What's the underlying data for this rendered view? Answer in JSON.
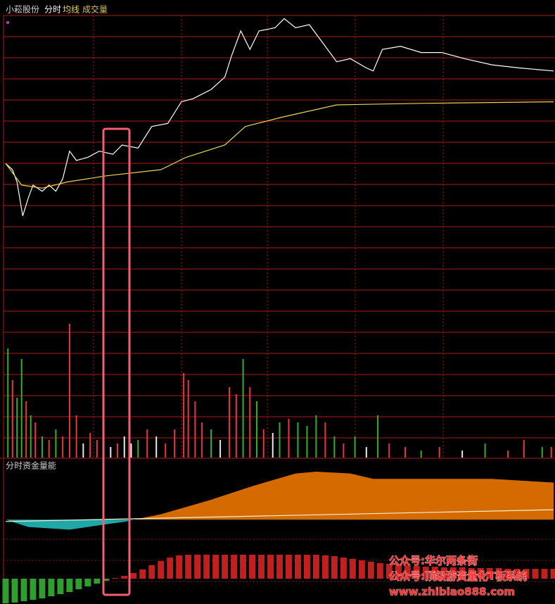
{
  "chart_data": [
    {
      "type": "line",
      "title": "小菘股份",
      "xlim": [
        0,
        240
      ],
      "ylim": [
        0,
        100
      ],
      "x": [
        0,
        3,
        5,
        7.5,
        10,
        12,
        16,
        19,
        22,
        25,
        28,
        31,
        36,
        41,
        47,
        51,
        58,
        64,
        71,
        77,
        82,
        90,
        96,
        99,
        103,
        107,
        111,
        118,
        122,
        127,
        133,
        139,
        145,
        151,
        158,
        161,
        165,
        173,
        182,
        191,
        201,
        213,
        225,
        240
      ],
      "series": [
        {
          "name": "分时",
          "color": "#ffffff",
          "values": [
            52,
            50,
            46,
            35,
            41,
            45,
            43,
            45,
            43,
            47,
            56,
            53,
            54,
            56,
            55,
            58,
            57,
            64,
            65,
            72,
            73,
            76,
            80,
            87,
            95,
            89,
            95,
            96,
            99,
            96,
            97,
            91,
            85,
            86,
            83,
            82,
            89,
            90,
            88,
            88,
            86,
            84,
            83,
            82
          ]
        }
      ]
    },
    {
      "type": "line",
      "xlim": [
        0,
        240
      ],
      "ylim": [
        0,
        100
      ],
      "x": [
        0,
        7,
        16,
        27,
        44,
        68,
        79,
        96,
        105,
        121,
        145,
        182,
        240
      ],
      "series": [
        {
          "name": "均线",
          "color": "#e6d84a",
          "values": [
            52,
            45,
            44,
            46,
            48,
            50,
            54,
            58,
            64,
            67,
            71,
            71.5,
            72
          ]
        }
      ]
    },
    {
      "type": "bar",
      "xlim": [
        0,
        240
      ],
      "ylim": [
        0,
        200
      ],
      "x": [
        1,
        3,
        5,
        7,
        9,
        11,
        13,
        16,
        19,
        22,
        25,
        28,
        31,
        34,
        37,
        40,
        43,
        46,
        49,
        52,
        55,
        58,
        62,
        66,
        70,
        74,
        78,
        80,
        83,
        86,
        90,
        94,
        98,
        101,
        104,
        107,
        110,
        113,
        117,
        120,
        124,
        128,
        132,
        136,
        140,
        144,
        148,
        153,
        158,
        163,
        168,
        175,
        182,
        190,
        200,
        210,
        220,
        227,
        235,
        239
      ],
      "series": [
        {
          "name": "成交量",
          "color": "#d8c060",
          "values": [
            155,
            110,
            85,
            140,
            80,
            60,
            50,
            30,
            25,
            40,
            30,
            190,
            60,
            20,
            35,
            25,
            100,
            15,
            20,
            30,
            20,
            25,
            40,
            30,
            20,
            40,
            120,
            110,
            80,
            50,
            40,
            25,
            100,
            90,
            140,
            100,
            80,
            40,
            35,
            50,
            55,
            50,
            45,
            60,
            50,
            30,
            20,
            30,
            15,
            60,
            20,
            15,
            10,
            15,
            10,
            20,
            10,
            25,
            15,
            15
          ],
          "colors": [
            "#2fb02f",
            "#e8383d",
            "#2fb02f",
            "#2fb02f",
            "#e8383d",
            "#2fb02f",
            "#e8383d",
            "#2fb02f",
            "#e8383d",
            "#2fb02f",
            "#e8383d",
            "#e8383d",
            "#e8383d",
            "#e8e8e8",
            "#e8383d",
            "#e8383d",
            "#e8383d",
            "#e8e8e8",
            "#e8383d",
            "#e8e8e8",
            "#e8e8e8",
            "#2fb02f",
            "#e8383d",
            "#e8e8e8",
            "#e8383d",
            "#e8383d",
            "#e8383d",
            "#e8383d",
            "#e8383d",
            "#e8383d",
            "#2fb02f",
            "#e8e8e8",
            "#e8383d",
            "#e8383d",
            "#2fb02f",
            "#e8383d",
            "#2fb02f",
            "#e8383d",
            "#e8e8e8",
            "#2fb02f",
            "#e8383d",
            "#2fb02f",
            "#2fb02f",
            "#2fb02f",
            "#e8383d",
            "#2fb02f",
            "#e8383d",
            "#2fb02f",
            "#e8e8e8",
            "#2fb02f",
            "#e8383d",
            "#e8383d",
            "#2fb02f",
            "#e8383d",
            "#e8e8e8",
            "#2fb02f",
            "#e8383d",
            "#e8383d",
            "#2fb02f",
            "#e8383d"
          ]
        }
      ]
    },
    {
      "type": "area",
      "title": "分时资金量能",
      "xlim": [
        0,
        240
      ],
      "ylim": [
        -93,
        67
      ],
      "color": "#d46a00",
      "negative_color": "#20a8a8",
      "x": [
        0,
        10,
        28,
        44,
        53,
        56,
        68,
        90,
        108,
        127,
        136,
        151,
        161,
        182,
        213,
        240
      ],
      "values": [
        0,
        -8,
        -11,
        -5,
        -2,
        0,
        6,
        22,
        37,
        51,
        53,
        51,
        45,
        45,
        45,
        41
      ]
    },
    {
      "type": "line",
      "xlim": [
        0,
        240
      ],
      "ylim": [
        -93,
        67
      ],
      "x": [
        0,
        240
      ],
      "series": [
        {
          "color": "#f0f0d0",
          "values": [
            -2,
            11
          ]
        }
      ]
    },
    {
      "type": "histogram",
      "xlim": [
        0,
        240
      ],
      "ylim": [
        -36,
        35
      ],
      "color": "#c0201f",
      "negative_color": "#2e9e2e",
      "x": [
        0,
        4,
        8,
        12,
        16,
        20,
        24,
        28,
        32,
        36,
        40,
        44,
        48,
        52,
        56,
        60,
        64,
        68,
        72,
        76,
        80,
        84,
        88,
        92,
        96,
        100,
        104,
        108,
        112,
        116,
        120,
        124,
        128,
        132,
        136,
        140,
        144,
        148,
        152,
        156,
        160,
        164,
        168,
        172,
        176,
        180,
        184,
        188,
        192,
        196,
        200,
        204,
        208,
        212,
        216,
        220,
        224,
        228,
        232,
        236,
        240
      ],
      "values": [
        -35,
        -34,
        -32,
        -30,
        -28,
        -25,
        -22,
        -19,
        -15,
        -11,
        -7,
        -3,
        1,
        4,
        8,
        13,
        19,
        25,
        30,
        33,
        34,
        34,
        34,
        34,
        34,
        34,
        34,
        34,
        34,
        34,
        34,
        34,
        34,
        34,
        34,
        33,
        32,
        30,
        28,
        26,
        24,
        22,
        21,
        20,
        19,
        18,
        17,
        17,
        16,
        16,
        16,
        15,
        15,
        15,
        15,
        14,
        14,
        14,
        14,
        14,
        14
      ]
    }
  ],
  "watermark": [
    "公众号:华尔两条街",
    "公众号:顶级游资量化T板系统",
    "www.zhibiao888.com"
  ]
}
